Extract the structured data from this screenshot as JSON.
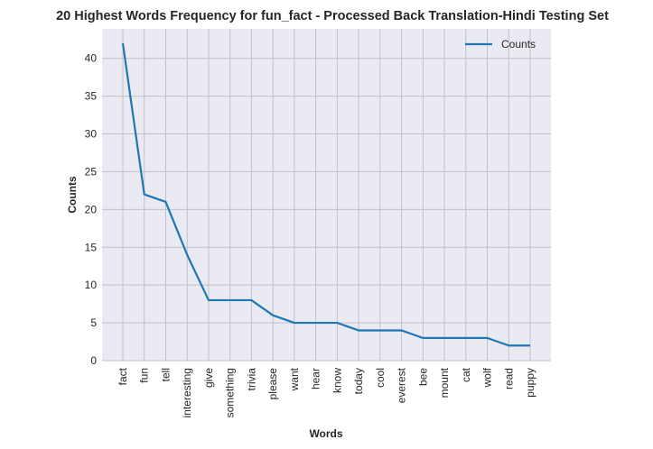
{
  "chart_data": {
    "type": "line",
    "title": "20 Highest Words Frequency for fun_fact - Processed Back Translation-Hindi Testing Set",
    "xlabel": "Words",
    "ylabel": "Counts",
    "categories": [
      "fact",
      "fun",
      "tell",
      "interesting",
      "give",
      "something",
      "trivia",
      "please",
      "want",
      "hear",
      "know",
      "today",
      "cool",
      "everest",
      "bee",
      "mount",
      "cat",
      "wolf",
      "read",
      "puppy"
    ],
    "series": [
      {
        "name": "Counts",
        "values": [
          42,
          22,
          21,
          14,
          8,
          8,
          8,
          6,
          5,
          5,
          5,
          4,
          4,
          4,
          3,
          3,
          3,
          3,
          2,
          2
        ],
        "color": "#1f77b4"
      }
    ],
    "ylim": [
      0,
      43.9
    ],
    "yticks": [
      0,
      5,
      10,
      15,
      20,
      25,
      30,
      35,
      40
    ],
    "grid": true,
    "legend": "top-right",
    "background": "#eaeaf2",
    "grid_color": "#c0c0c8"
  }
}
